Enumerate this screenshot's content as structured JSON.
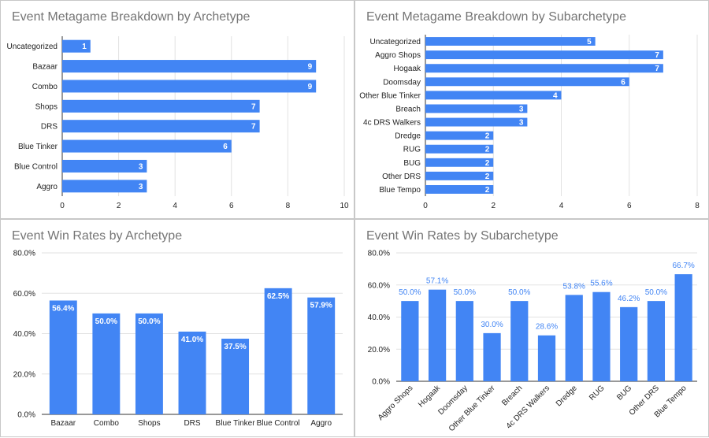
{
  "colors": {
    "bar": "#4285f4",
    "grid": "#e2e2e2",
    "axis": "#333333",
    "text": "#222222",
    "title": "#757575",
    "label_inside": "#ffffff",
    "label_outside": "#4285f4"
  },
  "chart_data": [
    {
      "type": "bar",
      "orientation": "horizontal",
      "title": "Event Metagame Breakdown by Archetype",
      "categories": [
        "Uncategorized",
        "Bazaar",
        "Combo",
        "Shops",
        "DRS",
        "Blue Tinker",
        "Blue Control",
        "Aggro"
      ],
      "values": [
        1,
        9,
        9,
        7,
        7,
        6,
        3,
        3
      ],
      "value_labels": [
        "1",
        "9",
        "9",
        "7",
        "7",
        "6",
        "3",
        "3"
      ],
      "xlim": [
        0,
        10
      ],
      "ticks": [
        0,
        2,
        4,
        6,
        8,
        10
      ],
      "tick_labels": [
        "0",
        "2",
        "4",
        "6",
        "8",
        "10"
      ],
      "grid": true,
      "legend": "none"
    },
    {
      "type": "bar",
      "orientation": "horizontal",
      "title": "Event Metagame Breakdown by Subarchetype",
      "categories": [
        "Uncategorized",
        "Aggro Shops",
        "Hogaak",
        "Doomsday",
        "Other Blue Tinker",
        "Breach",
        "4c DRS Walkers",
        "Dredge",
        "RUG",
        "BUG",
        "Other DRS",
        "Blue Tempo"
      ],
      "values": [
        5,
        7,
        7,
        6,
        4,
        3,
        3,
        2,
        2,
        2,
        2,
        2
      ],
      "value_labels": [
        "5",
        "7",
        "7",
        "6",
        "4",
        "3",
        "3",
        "2",
        "2",
        "2",
        "2",
        "2"
      ],
      "xlim": [
        0,
        8
      ],
      "ticks": [
        0,
        2,
        4,
        6,
        8
      ],
      "tick_labels": [
        "0",
        "2",
        "4",
        "6",
        "8"
      ],
      "grid": true,
      "legend": "none"
    },
    {
      "type": "bar",
      "orientation": "vertical",
      "title": "Event Win Rates by Archetype",
      "categories": [
        "Bazaar",
        "Combo",
        "Shops",
        "DRS",
        "Blue Tinker",
        "Blue Control",
        "Aggro"
      ],
      "values": [
        56.4,
        50.0,
        50.0,
        41.0,
        37.5,
        62.5,
        57.9
      ],
      "value_labels": [
        "56.4%",
        "50.0%",
        "50.0%",
        "41.0%",
        "37.5%",
        "62.5%",
        "57.9%"
      ],
      "ylim": [
        0,
        80
      ],
      "ticks": [
        0,
        20,
        40,
        60,
        80
      ],
      "tick_labels": [
        "0.0%",
        "20.0%",
        "40.0%",
        "60.0%",
        "80.0%"
      ],
      "labels_inside": true,
      "rotate_categories": false,
      "grid": true,
      "legend": "none"
    },
    {
      "type": "bar",
      "orientation": "vertical",
      "title": "Event Win Rates by Subarchetype",
      "categories": [
        "Aggro Shops",
        "Hogaak",
        "Doomsday",
        "Other Blue Tinker",
        "Breach",
        "4c DRS Walkers",
        "Dredge",
        "RUG",
        "BUG",
        "Other DRS",
        "Blue Tempo"
      ],
      "values": [
        50.0,
        57.1,
        50.0,
        30.0,
        50.0,
        28.6,
        53.8,
        55.6,
        46.2,
        50.0,
        66.7
      ],
      "value_labels": [
        "50.0%",
        "57.1%",
        "50.0%",
        "30.0%",
        "50.0%",
        "28.6%",
        "53.8%",
        "55.6%",
        "46.2%",
        "50.0%",
        "66.7%"
      ],
      "ylim": [
        0,
        80
      ],
      "ticks": [
        0,
        20,
        40,
        60,
        80
      ],
      "tick_labels": [
        "0.0%",
        "20.0%",
        "40.0%",
        "60.0%",
        "80.0%"
      ],
      "labels_inside": false,
      "rotate_categories": true,
      "grid": true,
      "legend": "none"
    }
  ]
}
